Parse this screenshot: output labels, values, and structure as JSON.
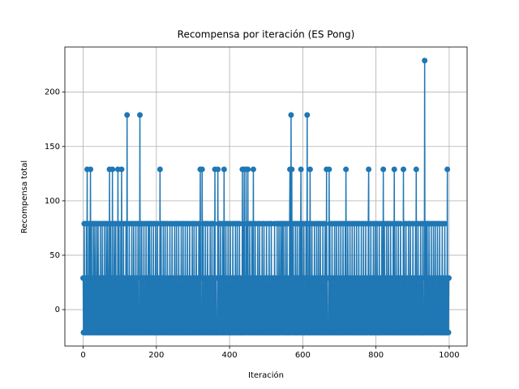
{
  "chart_data": {
    "type": "line",
    "title": "Recompensa por iteración (ES Pong)",
    "x_label": "Iteración",
    "y_label": "Recompensa total",
    "color": "#1f77b4",
    "marker": "o",
    "grid": true,
    "xlim": [
      -49.95,
      1048.95
    ],
    "xticks": [
      0,
      200,
      400,
      600,
      800,
      1000
    ],
    "ylim": [
      -33.5,
      241.5
    ],
    "yticks": [
      0,
      50,
      100,
      150,
      200
    ],
    "values": [
      29,
      -21,
      -21,
      79,
      -21,
      29,
      -21,
      -21,
      -21,
      79,
      -21,
      129,
      -21,
      29,
      -21,
      -21,
      79,
      -21,
      -21,
      29,
      129,
      -21,
      -21,
      79,
      -21,
      -21,
      29,
      -21,
      79,
      -21,
      -21,
      -21,
      79,
      29,
      -21,
      -21,
      -21,
      79,
      -21,
      29,
      -21,
      79,
      -21,
      -21,
      29,
      -21,
      -21,
      79,
      -21,
      -21,
      29,
      -21,
      79,
      -21,
      -21,
      29,
      -21,
      -21,
      79,
      -21,
      -21,
      29,
      -21,
      79,
      -21,
      -21,
      -21,
      79,
      29,
      -21,
      -21,
      -21,
      129,
      -21,
      -21,
      79,
      -21,
      29,
      -21,
      -21,
      129,
      -21,
      -21,
      29,
      -21,
      79,
      -21,
      -21,
      -21,
      79,
      -21,
      29,
      -21,
      -21,
      -21,
      129,
      -21,
      -21,
      79,
      -21,
      29,
      -21,
      -21,
      79,
      -21,
      129,
      -21,
      -21,
      29,
      -21,
      79,
      -21,
      -21,
      -21,
      29,
      -21,
      -21,
      79,
      -21,
      -21,
      179,
      -21,
      -21,
      29,
      -21,
      -21,
      79,
      -21,
      -21,
      29,
      -21,
      -21,
      -21,
      79,
      -21,
      29,
      -21,
      -21,
      79,
      -21,
      -21,
      29,
      -21,
      -21,
      79,
      -21,
      -21,
      -21,
      29,
      -21,
      79,
      -21,
      -21,
      -21,
      -21,
      179,
      -21,
      -21,
      29,
      -21,
      79,
      -21,
      -21,
      29,
      -21,
      -21,
      79,
      -21,
      -21,
      -21,
      29,
      -21,
      79,
      -21,
      -21,
      29,
      -21,
      -21,
      79,
      -21,
      -21,
      79,
      -21,
      29,
      -21,
      -21,
      79,
      -21,
      -21,
      29,
      -21,
      -21,
      79,
      -21,
      -21,
      -21,
      29,
      -21,
      79,
      -21,
      -21,
      29,
      -21,
      79,
      -21,
      -21,
      -21,
      29,
      -21,
      -21,
      129,
      -21,
      -21,
      79,
      -21,
      29,
      -21,
      -21,
      -21,
      79,
      -21,
      -21,
      29,
      -21,
      79,
      -21,
      -21,
      -21,
      29,
      -21,
      79,
      -21,
      -21,
      29,
      -21,
      -21,
      -21,
      79,
      -21,
      -21,
      29,
      -21,
      -21,
      79,
      -21,
      -21,
      29,
      -21,
      -21,
      -21,
      79,
      -21,
      29,
      -21,
      -21,
      79,
      -21,
      -21,
      -21,
      29,
      -21,
      79,
      -21,
      -21,
      29,
      -21,
      -21,
      -21,
      79,
      -21,
      -21,
      29,
      -21,
      79,
      -21,
      -21,
      -21,
      29,
      -21,
      79,
      -21,
      -21,
      29,
      -21,
      -21,
      79,
      -21,
      -21,
      -21,
      29,
      -21,
      79,
      -21,
      -21,
      -21,
      29,
      -21,
      -21,
      79,
      -21,
      29,
      -21,
      -21,
      79,
      -21,
      -21,
      -21,
      29,
      -21,
      79,
      -21,
      -21,
      29,
      -21,
      -21,
      -21,
      79,
      -21,
      -21,
      29,
      129,
      -21,
      -21,
      -21,
      -21,
      129,
      29,
      -21,
      79,
      -21,
      -21,
      -21,
      29,
      -21,
      79,
      -21,
      -21,
      29,
      -21,
      -21,
      79,
      -21,
      -21,
      29,
      -21,
      -21,
      -21,
      79,
      -21,
      29,
      -21,
      -21,
      79,
      -21,
      -21,
      -21,
      29,
      -21,
      79,
      -21,
      129,
      -21,
      -21,
      29,
      -21,
      -21,
      -21,
      -21,
      129,
      -21,
      79,
      -21,
      -21,
      29,
      -21,
      79,
      -21,
      -21,
      -21,
      29,
      -21,
      79,
      -21,
      -21,
      -21,
      129,
      -21,
      29,
      -21,
      -21,
      79,
      -21,
      -21,
      -21,
      29,
      -21,
      79,
      -21,
      -21,
      -21,
      29,
      -21,
      79,
      -21,
      -21,
      -21,
      29,
      -21,
      -21,
      79,
      -21,
      -21,
      29,
      -21,
      -21,
      -21,
      79,
      -21,
      29,
      -21,
      -21,
      79,
      -21,
      -21,
      29,
      -21,
      -21,
      79,
      -21,
      -21,
      -21,
      29,
      -21,
      -21,
      -21,
      129,
      -21,
      79,
      -21,
      -21,
      129,
      -21,
      -21,
      29,
      -21,
      129,
      -21,
      79,
      -21,
      -21,
      129,
      -21,
      29,
      -21,
      -21,
      79,
      -21,
      -21,
      29,
      -21,
      -21,
      79,
      -21,
      -21,
      -21,
      129,
      -21,
      29,
      -21,
      -21,
      79,
      -21,
      -21,
      29,
      -21,
      -21,
      -21,
      79,
      -21,
      -21,
      29,
      -21,
      79,
      -21,
      -21,
      -21,
      29,
      -21,
      -21,
      79,
      -21,
      -21,
      29,
      -21,
      79,
      -21,
      -21,
      -21,
      29,
      -21,
      -21,
      79,
      -21,
      -21,
      29,
      -21,
      -21,
      -21,
      79,
      -21,
      29,
      -21,
      -21,
      -21,
      79,
      -21,
      -21,
      29,
      -21,
      -21,
      29,
      -21,
      -21,
      79,
      -21,
      -21,
      29,
      -21,
      -21,
      -21,
      79,
      -21,
      -21,
      29,
      -21,
      79,
      -21,
      -21,
      -21,
      29,
      79,
      -21,
      -21,
      29,
      79,
      -21,
      -21,
      79,
      -21,
      29,
      -21,
      -21,
      79,
      -21,
      -21,
      29,
      -21,
      79,
      -21,
      -21,
      29,
      -21,
      -21,
      -21,
      79,
      129,
      -21,
      -21,
      179,
      -21,
      129,
      -21,
      29,
      -21,
      79,
      -21,
      -21,
      29,
      -21,
      -21,
      79,
      -21,
      -21,
      29,
      -21,
      79,
      -21,
      -21,
      -21,
      29,
      -21,
      79,
      -21,
      -21,
      29,
      129,
      -21,
      -21,
      79,
      -21,
      -21,
      29,
      -21,
      79,
      -21,
      -21,
      -21,
      29,
      -21,
      79,
      -21,
      -21,
      179,
      -21,
      29,
      -21,
      -21,
      79,
      -21,
      -21,
      129,
      -21,
      -21,
      29,
      -21,
      79,
      -21,
      -21,
      -21,
      29,
      -21,
      -21,
      79,
      -21,
      29,
      -21,
      -21,
      -21,
      79,
      -21,
      29,
      -21,
      -21,
      79,
      -21,
      -21,
      29,
      -21,
      79,
      -21,
      -21,
      -21,
      29,
      -21,
      -21,
      79,
      -21,
      29,
      -21,
      -21,
      -21,
      79,
      -21,
      -21,
      -21,
      129,
      -21,
      29,
      -21,
      -21,
      -21,
      -21,
      129,
      -21,
      79,
      -21,
      -21,
      29,
      -21,
      -21,
      79,
      -21,
      -21,
      29,
      -21,
      -21,
      -21,
      79,
      -21,
      29,
      -21,
      -21,
      79,
      -21,
      -21,
      -21,
      29,
      -21,
      79,
      -21,
      -21,
      29,
      -21,
      -21,
      79,
      -21,
      -21,
      -21,
      29,
      -21,
      79,
      -21,
      -21,
      29,
      -21,
      -21,
      79,
      -21,
      129,
      -21,
      29,
      -21,
      -21,
      79,
      -21,
      -21,
      -21,
      29,
      -21,
      79,
      -21,
      -21,
      29,
      -21,
      -21,
      79,
      -21,
      -21,
      -21,
      29,
      -21,
      79,
      -21,
      -21,
      29,
      -21,
      -21,
      79,
      -21,
      -21,
      -21,
      29,
      -21,
      79,
      -21,
      -21,
      29,
      -21,
      -21,
      -21,
      79,
      -21,
      -21,
      29,
      -21,
      -21,
      79,
      -21,
      -21,
      -21,
      29,
      -21,
      79,
      -21,
      -21,
      29,
      -21,
      -21,
      -21,
      79,
      129,
      -21,
      -21,
      29,
      -21,
      -21,
      79,
      -21,
      -21,
      -21,
      29,
      -21,
      -21,
      79,
      -21,
      29,
      -21,
      -21,
      79,
      -21,
      -21,
      29,
      -21,
      79,
      -21,
      -21,
      -21,
      29,
      -21,
      79,
      -21,
      -21,
      29,
      -21,
      -21,
      -21,
      79,
      -21,
      29,
      -21,
      129,
      -21,
      -21,
      79,
      -21,
      29,
      -21,
      -21,
      -21,
      79,
      -21,
      -21,
      29,
      -21,
      79,
      -21,
      -21,
      -21,
      29,
      -21,
      79,
      -21,
      -21,
      29,
      -21,
      -21,
      -21,
      79,
      -21,
      -21,
      129,
      -21,
      29,
      -21,
      -21,
      79,
      -21,
      -21,
      -21,
      29,
      -21,
      79,
      -21,
      -21,
      29,
      -21,
      -21,
      79,
      -21,
      -21,
      -21,
      29,
      -21,
      -21,
      -21,
      129,
      -21,
      79,
      -21,
      -21,
      29,
      -21,
      79,
      -21,
      -21,
      -21,
      29,
      -21,
      -21,
      79,
      -21,
      -21,
      29,
      -21,
      79,
      -21,
      -21,
      -21,
      29,
      -21,
      -21,
      79,
      -21,
      -21,
      29,
      -21,
      -21,
      -21,
      79,
      -21,
      129,
      -21,
      29,
      -21,
      -21,
      79,
      -21,
      -21,
      -21,
      29,
      -21,
      -21,
      79,
      -21,
      29,
      -21,
      -21,
      -21,
      79,
      -21,
      -21,
      -21,
      -21,
      229,
      -21,
      29,
      -21,
      79,
      -21,
      -21,
      79,
      -21,
      -21,
      29,
      -21,
      79,
      -21,
      -21,
      -21,
      29,
      -21,
      79,
      -21,
      -21,
      29,
      -21,
      -21,
      79,
      -21,
      -21,
      29,
      -21,
      79,
      -21,
      -21,
      -21,
      29,
      -21,
      79,
      -21,
      -21,
      29,
      -21,
      -21,
      79,
      -21,
      -21,
      -21,
      29,
      -21,
      -21,
      79,
      -21,
      -21,
      29,
      -21,
      -21,
      -21,
      79,
      -21,
      -21,
      29,
      -21,
      -21,
      -21,
      129,
      -21,
      -21,
      -21,
      29
    ]
  }
}
